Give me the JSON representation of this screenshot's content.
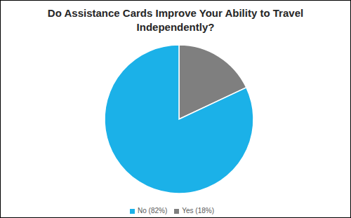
{
  "chart_data": {
    "type": "pie",
    "title": "Do Assistance Cards Improve Your Ability to Travel Independently?",
    "categories": [
      "Yes (18%)",
      "No (82%)"
    ],
    "values": [
      18,
      82
    ],
    "colors": [
      "#7f7f7f",
      "#1bb1e8"
    ],
    "legend": "bottom"
  }
}
